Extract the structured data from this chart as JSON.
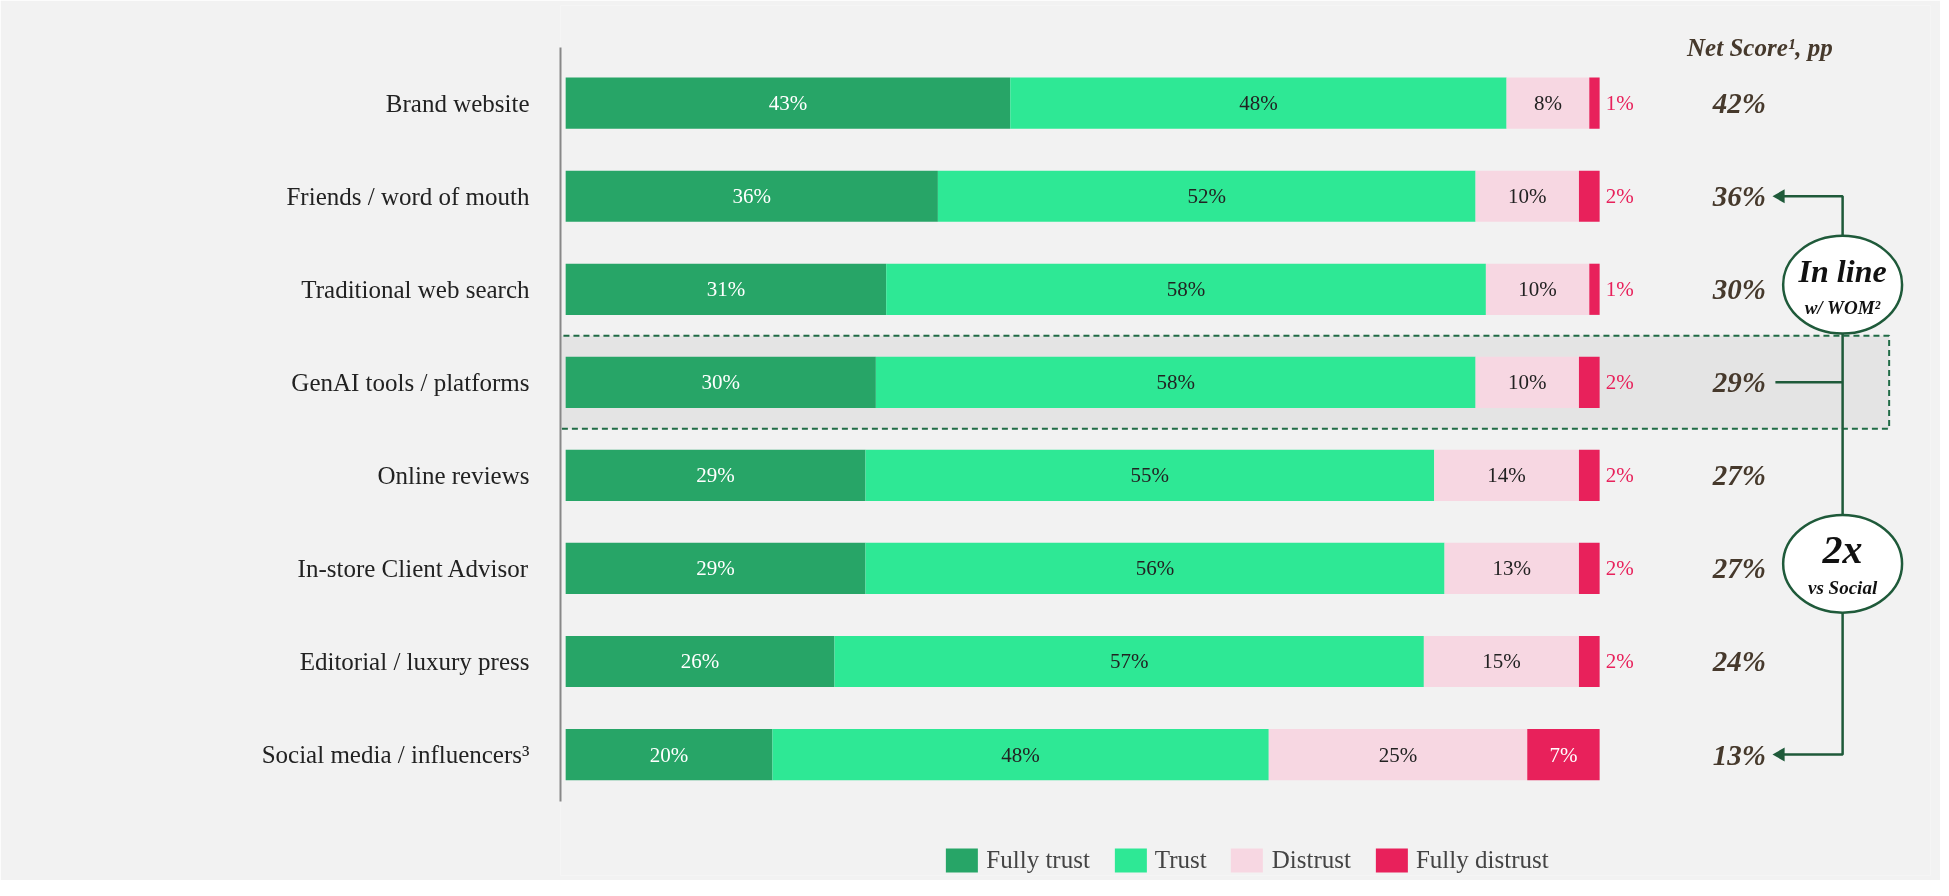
{
  "chart_data": {
    "type": "bar",
    "orientation": "horizontal",
    "stacked": true,
    "legend": "bottom",
    "grid": false,
    "categories": [
      "Brand website",
      "Friends / word of mouth",
      "Traditional web search",
      "GenAI tools / platforms",
      "Online reviews",
      "In-store Client Advisor",
      "Editorial / luxury press",
      "Social media / influencers³"
    ],
    "series": [
      {
        "name": "Fully trust",
        "color": "#27a567",
        "values": [
          43,
          36,
          31,
          30,
          29,
          29,
          26,
          20
        ],
        "value_labels": [
          "43%",
          "36%",
          "31%",
          "30%",
          "29%",
          "29%",
          "26%",
          "20%"
        ]
      },
      {
        "name": "Trust",
        "color": "#2ee895",
        "values": [
          48,
          52,
          58,
          58,
          55,
          56,
          57,
          48
        ],
        "value_labels": [
          "48%",
          "52%",
          "58%",
          "58%",
          "55%",
          "56%",
          "57%",
          "48%"
        ]
      },
      {
        "name": "Distrust",
        "color": "#f7d7e2",
        "values": [
          8,
          10,
          10,
          10,
          14,
          13,
          15,
          25
        ],
        "value_labels": [
          "8%",
          "10%",
          "10%",
          "10%",
          "14%",
          "13%",
          "15%",
          "25%"
        ]
      },
      {
        "name": "Fully distrust",
        "color": "#e8215b",
        "values": [
          1,
          2,
          1,
          2,
          2,
          2,
          2,
          7
        ],
        "value_labels": [
          "1%",
          "2%",
          "1%",
          "2%",
          "2%",
          "2%",
          "2%",
          "7%"
        ]
      }
    ],
    "bands": [
      {
        "axis": "y",
        "from": "GenAI tools / platforms",
        "to": "GenAI tools / platforms",
        "color": "#e4e4e4"
      }
    ],
    "annotations": [
      "Net Score¹, pp",
      "42%",
      "36%",
      "30%",
      "29%",
      "27%",
      "27%",
      "24%",
      "13%",
      "In line\nw/ WOM²",
      "2x\nvs Social"
    ]
  }
}
